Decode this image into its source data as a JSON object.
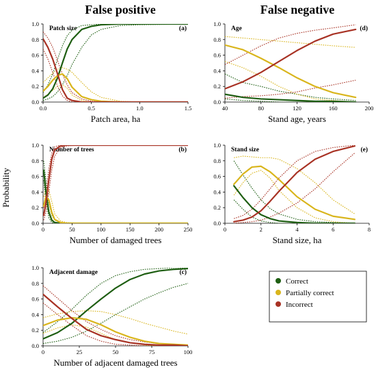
{
  "column_titles": [
    "False positive",
    "False negative"
  ],
  "y_axis_label": "Probability",
  "legend": [
    {
      "label": "Correct",
      "color": "#1e5e12"
    },
    {
      "label": "Partially correct",
      "color": "#d9b51c"
    },
    {
      "label": "Incorrect",
      "color": "#a83224"
    }
  ],
  "chart_data": [
    {
      "type": "line",
      "title": "Patch size",
      "letter": "(a)",
      "xlabel": "Patch area, ha",
      "xlim": [
        0,
        1.5
      ],
      "ylim": [
        0,
        1
      ],
      "xticks": [
        0.0,
        0.5,
        1.0,
        1.5
      ],
      "xtick_labels": [
        "0.0",
        "0.5",
        "1.0",
        "1.5"
      ],
      "yticks": [
        0,
        0.2,
        0.4,
        0.6,
        0.8,
        1.0
      ],
      "ytick_labels": [
        "0.0",
        "0.2",
        "0.4",
        "0.6",
        "0.8",
        "1.0"
      ],
      "series": [
        {
          "color": "#1e5e12",
          "x": [
            0,
            0.05,
            0.1,
            0.15,
            0.2,
            0.25,
            0.3,
            0.4,
            0.5,
            0.6,
            0.8,
            1.0,
            1.5
          ],
          "mean": [
            0.05,
            0.09,
            0.17,
            0.31,
            0.5,
            0.68,
            0.8,
            0.93,
            0.97,
            0.99,
            1.0,
            1.0,
            1.0
          ],
          "lower": [
            0.02,
            0.04,
            0.07,
            0.13,
            0.22,
            0.34,
            0.48,
            0.7,
            0.86,
            0.93,
            0.98,
            0.99,
            1.0
          ],
          "upper": [
            0.12,
            0.22,
            0.36,
            0.55,
            0.72,
            0.85,
            0.92,
            0.98,
            0.99,
            1.0,
            1.0,
            1.0,
            1.0
          ]
        },
        {
          "color": "#d9b51c",
          "x": [
            0,
            0.05,
            0.1,
            0.15,
            0.2,
            0.25,
            0.3,
            0.4,
            0.5,
            0.6,
            0.8,
            1.0,
            1.5
          ],
          "mean": [
            0.14,
            0.2,
            0.28,
            0.34,
            0.36,
            0.3,
            0.19,
            0.07,
            0.03,
            0.01,
            0.0,
            0.0,
            0.0
          ],
          "lower": [
            0.06,
            0.1,
            0.15,
            0.2,
            0.22,
            0.18,
            0.09,
            0.02,
            0.0,
            0.0,
            0.0,
            0.0,
            0.0
          ],
          "upper": [
            0.25,
            0.31,
            0.37,
            0.42,
            0.44,
            0.42,
            0.38,
            0.25,
            0.13,
            0.06,
            0.01,
            0.0,
            0.0
          ]
        },
        {
          "color": "#a83224",
          "x": [
            0,
            0.05,
            0.1,
            0.15,
            0.2,
            0.25,
            0.3,
            0.4,
            0.5,
            0.6,
            0.8,
            1.0,
            1.5
          ],
          "mean": [
            0.81,
            0.7,
            0.55,
            0.36,
            0.16,
            0.05,
            0.02,
            0.0,
            0.0,
            0.0,
            0.0,
            0.0,
            0.0
          ],
          "lower": [
            0.68,
            0.55,
            0.38,
            0.2,
            0.08,
            0.02,
            0.0,
            0.0,
            0.0,
            0.0,
            0.0,
            0.0,
            0.0
          ],
          "upper": [
            0.9,
            0.82,
            0.7,
            0.53,
            0.36,
            0.22,
            0.12,
            0.04,
            0.01,
            0.0,
            0.0,
            0.0,
            0.0
          ]
        }
      ]
    },
    {
      "type": "line",
      "title": "Age",
      "letter": "(d)",
      "xlabel": "Stand age, years",
      "xlim": [
        40,
        200
      ],
      "ylim": [
        0,
        1
      ],
      "xticks": [
        40,
        80,
        120,
        160,
        200
      ],
      "xtick_labels": [
        "40",
        "80",
        "120",
        "160",
        "200"
      ],
      "yticks": [
        0,
        0.2,
        0.4,
        0.6,
        0.8,
        1.0
      ],
      "ytick_labels": [
        "0.0",
        "0.2",
        "0.4",
        "0.6",
        "0.8",
        "1.0"
      ],
      "series": [
        {
          "color": "#1e5e12",
          "x": [
            40,
            60,
            80,
            100,
            120,
            140,
            160,
            185
          ],
          "mean": [
            0.1,
            0.06,
            0.04,
            0.03,
            0.02,
            0.01,
            0.01,
            0.0
          ],
          "lower": [
            0.04,
            0.02,
            0.01,
            0.0,
            0.0,
            0.0,
            0.0,
            0.0
          ],
          "upper": [
            0.36,
            0.25,
            0.2,
            0.14,
            0.1,
            0.06,
            0.04,
            0.02
          ]
        },
        {
          "color": "#d9b51c",
          "x": [
            40,
            60,
            80,
            100,
            120,
            140,
            160,
            185
          ],
          "mean": [
            0.73,
            0.67,
            0.56,
            0.44,
            0.31,
            0.2,
            0.12,
            0.06
          ],
          "lower": [
            0.52,
            0.44,
            0.33,
            0.2,
            0.1,
            0.04,
            0.02,
            0.0
          ],
          "upper": [
            0.84,
            0.82,
            0.8,
            0.78,
            0.76,
            0.74,
            0.72,
            0.7
          ]
        },
        {
          "color": "#a83224",
          "x": [
            40,
            60,
            80,
            100,
            120,
            140,
            160,
            185
          ],
          "mean": [
            0.17,
            0.26,
            0.38,
            0.52,
            0.66,
            0.78,
            0.87,
            0.93
          ],
          "lower": [
            0.05,
            0.07,
            0.08,
            0.1,
            0.13,
            0.18,
            0.22,
            0.28
          ],
          "upper": [
            0.48,
            0.6,
            0.72,
            0.82,
            0.88,
            0.92,
            0.95,
            0.99
          ]
        }
      ]
    },
    {
      "type": "line",
      "title": "Number of trees",
      "letter": "(b)",
      "xlabel": "Number of damaged trees",
      "xlim": [
        0,
        250
      ],
      "ylim": [
        0,
        1
      ],
      "xticks": [
        0,
        50,
        100,
        150,
        200,
        250
      ],
      "xtick_labels": [
        "0",
        "50",
        "100",
        "150",
        "200",
        "250"
      ],
      "yticks": [
        0,
        0.2,
        0.4,
        0.6,
        0.8,
        1.0
      ],
      "ytick_labels": [
        "0.0",
        "0.2",
        "0.4",
        "0.6",
        "0.8",
        "1.0"
      ],
      "series": [
        {
          "color": "#1e5e12",
          "x": [
            1,
            5,
            10,
            15,
            20,
            30,
            40,
            60,
            250
          ],
          "mean": [
            0.68,
            0.4,
            0.14,
            0.04,
            0.01,
            0.0,
            0.0,
            0.0,
            0.0
          ],
          "lower": [
            0.55,
            0.28,
            0.07,
            0.01,
            0.0,
            0.0,
            0.0,
            0.0,
            0.0
          ],
          "upper": [
            0.8,
            0.55,
            0.26,
            0.11,
            0.04,
            0.01,
            0.0,
            0.0,
            0.0
          ]
        },
        {
          "color": "#d9b51c",
          "x": [
            1,
            5,
            10,
            15,
            20,
            30,
            40,
            60,
            250
          ],
          "mean": [
            0.22,
            0.34,
            0.3,
            0.14,
            0.05,
            0.01,
            0.0,
            0.0,
            0.0
          ],
          "lower": [
            0.12,
            0.22,
            0.18,
            0.06,
            0.01,
            0.0,
            0.0,
            0.0,
            0.0
          ],
          "upper": [
            0.34,
            0.44,
            0.42,
            0.28,
            0.12,
            0.03,
            0.01,
            0.0,
            0.0
          ]
        },
        {
          "color": "#a83224",
          "x": [
            1,
            5,
            10,
            15,
            20,
            30,
            40,
            60,
            250
          ],
          "mean": [
            0.1,
            0.26,
            0.56,
            0.82,
            0.94,
            0.99,
            1.0,
            1.0,
            1.0
          ],
          "lower": [
            0.04,
            0.14,
            0.4,
            0.68,
            0.86,
            0.97,
            0.99,
            1.0,
            1.0
          ],
          "upper": [
            0.2,
            0.4,
            0.7,
            0.9,
            0.98,
            1.0,
            1.0,
            1.0,
            1.0
          ]
        }
      ]
    },
    {
      "type": "line",
      "title": "Stand size",
      "letter": "(e)",
      "xlabel": "Stand size, ha",
      "xlim": [
        0,
        8
      ],
      "ylim": [
        0,
        1
      ],
      "xticks": [
        0,
        2,
        4,
        6,
        8
      ],
      "xtick_labels": [
        "0",
        "2",
        "4",
        "6",
        "8"
      ],
      "yticks": [
        0,
        0.2,
        0.4,
        0.6,
        0.8,
        1.0
      ],
      "ytick_labels": [
        "0.0",
        "0.2",
        "0.4",
        "0.6",
        "0.8",
        "1.0"
      ],
      "series": [
        {
          "color": "#1e5e12",
          "x": [
            0.5,
            1,
            1.5,
            2,
            2.5,
            3,
            4,
            5,
            6,
            7.2
          ],
          "mean": [
            0.48,
            0.33,
            0.2,
            0.11,
            0.06,
            0.03,
            0.01,
            0.0,
            0.0,
            0.0
          ],
          "lower": [
            0.3,
            0.18,
            0.08,
            0.03,
            0.01,
            0.0,
            0.0,
            0.0,
            0.0,
            0.0
          ],
          "upper": [
            0.8,
            0.62,
            0.45,
            0.3,
            0.19,
            0.12,
            0.05,
            0.02,
            0.01,
            0.0
          ]
        },
        {
          "color": "#d9b51c",
          "x": [
            0.5,
            1,
            1.5,
            2,
            2.5,
            3,
            4,
            5,
            6,
            7.2
          ],
          "mean": [
            0.5,
            0.63,
            0.72,
            0.73,
            0.66,
            0.56,
            0.34,
            0.18,
            0.09,
            0.05
          ],
          "lower": [
            0.36,
            0.52,
            0.64,
            0.68,
            0.58,
            0.42,
            0.2,
            0.07,
            0.02,
            0.0
          ],
          "upper": [
            0.84,
            0.86,
            0.85,
            0.84,
            0.84,
            0.82,
            0.7,
            0.52,
            0.3,
            0.12
          ]
        },
        {
          "color": "#a83224",
          "x": [
            0.5,
            1,
            1.5,
            2,
            2.5,
            3,
            4,
            5,
            6,
            7.2
          ],
          "mean": [
            0.02,
            0.04,
            0.08,
            0.16,
            0.28,
            0.41,
            0.65,
            0.82,
            0.92,
            0.99
          ],
          "lower": [
            0.0,
            0.01,
            0.02,
            0.04,
            0.08,
            0.13,
            0.26,
            0.44,
            0.66,
            0.9
          ],
          "upper": [
            0.06,
            0.1,
            0.18,
            0.3,
            0.44,
            0.58,
            0.8,
            0.92,
            0.97,
            1.0
          ]
        }
      ]
    },
    {
      "type": "line",
      "title": "Adjacent damage",
      "letter": "(c)",
      "xlabel": "Number of adjacent damaged trees",
      "xlim": [
        0,
        100
      ],
      "ylim": [
        0,
        1
      ],
      "xticks": [
        0,
        25,
        50,
        75,
        100
      ],
      "xtick_labels": [
        "0",
        "25",
        "50",
        "75",
        "100"
      ],
      "yticks": [
        0,
        0.2,
        0.4,
        0.6,
        0.8,
        1.0
      ],
      "ytick_labels": [
        "0.0",
        "0.2",
        "0.4",
        "0.6",
        "0.8",
        "1.0"
      ],
      "series": [
        {
          "color": "#1e5e12",
          "x": [
            0,
            10,
            20,
            30,
            40,
            50,
            60,
            70,
            80,
            90,
            100
          ],
          "mean": [
            0.09,
            0.17,
            0.29,
            0.45,
            0.6,
            0.74,
            0.85,
            0.92,
            0.96,
            0.98,
            0.99
          ],
          "lower": [
            0.03,
            0.06,
            0.11,
            0.19,
            0.29,
            0.4,
            0.5,
            0.6,
            0.68,
            0.75,
            0.8
          ],
          "upper": [
            0.17,
            0.31,
            0.47,
            0.65,
            0.8,
            0.9,
            0.95,
            0.98,
            0.99,
            1.0,
            1.0
          ]
        },
        {
          "color": "#d9b51c",
          "x": [
            0,
            10,
            20,
            30,
            40,
            50,
            60,
            70,
            80,
            90,
            100
          ],
          "mean": [
            0.26,
            0.33,
            0.36,
            0.34,
            0.27,
            0.18,
            0.11,
            0.06,
            0.03,
            0.02,
            0.01
          ],
          "lower": [
            0.16,
            0.23,
            0.27,
            0.24,
            0.16,
            0.08,
            0.04,
            0.01,
            0.0,
            0.0,
            0.0
          ],
          "upper": [
            0.36,
            0.41,
            0.44,
            0.45,
            0.44,
            0.4,
            0.35,
            0.29,
            0.24,
            0.19,
            0.15
          ]
        },
        {
          "color": "#a83224",
          "x": [
            0,
            10,
            20,
            30,
            40,
            50,
            60,
            70,
            80,
            90,
            100
          ],
          "mean": [
            0.66,
            0.5,
            0.35,
            0.21,
            0.13,
            0.08,
            0.04,
            0.02,
            0.01,
            0.01,
            0.0
          ],
          "lower": [
            0.55,
            0.4,
            0.26,
            0.13,
            0.06,
            0.02,
            0.01,
            0.0,
            0.0,
            0.0,
            0.0
          ],
          "upper": [
            0.77,
            0.61,
            0.45,
            0.31,
            0.21,
            0.13,
            0.08,
            0.05,
            0.03,
            0.02,
            0.01
          ]
        }
      ]
    }
  ]
}
